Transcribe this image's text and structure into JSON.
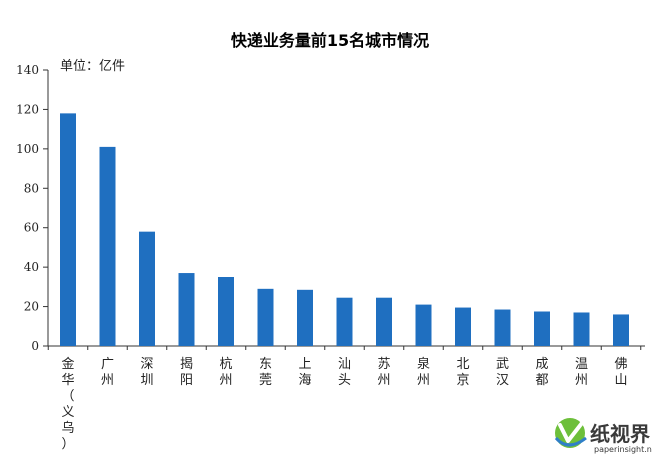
{
  "chart_data": {
    "type": "bar",
    "title": "快递业务量前15名城市情况",
    "unit_label": "单位：亿件",
    "xlabel": "",
    "ylabel": "",
    "ylim": [
      0,
      140
    ],
    "yticks": [
      0,
      20,
      40,
      60,
      80,
      100,
      120,
      140
    ],
    "grid": false,
    "bar_color": "#1f6fc0",
    "categories": [
      "金华（义乌）",
      "广州",
      "深圳",
      "揭阳",
      "杭州",
      "东莞",
      "上海",
      "汕头",
      "苏州",
      "泉州",
      "北京",
      "武汉",
      "成都",
      "温州",
      "佛山"
    ],
    "values": [
      118,
      101,
      58,
      37,
      35,
      29,
      28.5,
      24.5,
      24.5,
      21,
      19.5,
      18.5,
      17.5,
      17,
      16
    ]
  },
  "watermark": {
    "text": "纸视界",
    "url": "paperinsight.net"
  }
}
